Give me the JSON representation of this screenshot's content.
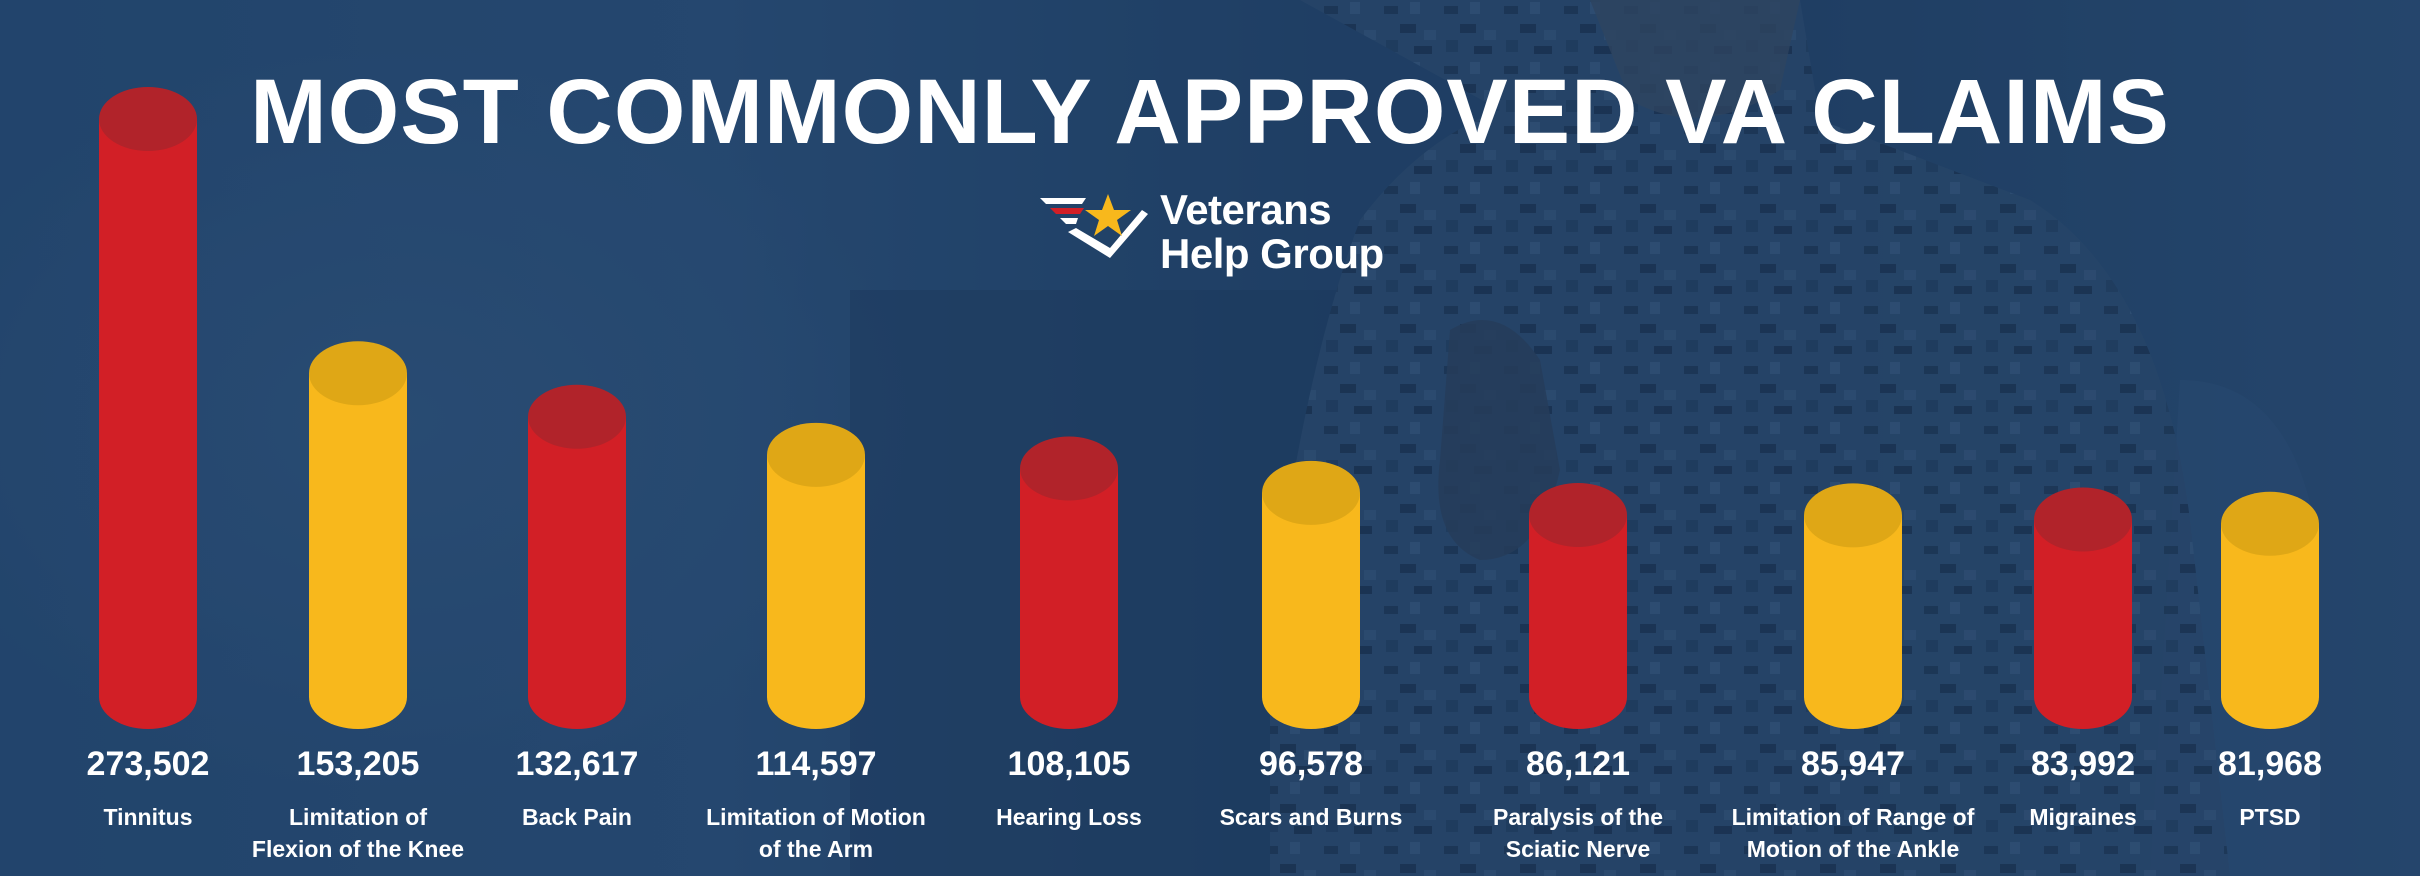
{
  "title": "MOST COMMONLY APPROVED VA CLAIMS",
  "logo": {
    "line1": "Veterans",
    "line2": "Help Group"
  },
  "colors": {
    "background": "#1f3e62",
    "red": "#d21f26",
    "red_top": "#b1232a",
    "yellow": "#f8b81c",
    "yellow_top": "#dfa716",
    "text": "#ffffff",
    "logo_red": "#d21f26",
    "logo_star": "#f8b81c"
  },
  "chart_data": {
    "type": "bar",
    "style": "3d-cylinder",
    "title": "MOST COMMONLY APPROVED VA CLAIMS",
    "categories": [
      "Tinnitus",
      "Limitation of Flexion of the Knee",
      "Back Pain",
      "Limitation of Motion of the Arm",
      "Hearing Loss",
      "Scars and Burns",
      "Paralysis of the Sciatic Nerve",
      "Limitation of Range of Motion of the Ankle",
      "Migraines",
      "PTSD"
    ],
    "category_lines": [
      [
        "Tinnitus"
      ],
      [
        "Limitation of",
        "Flexion of the Knee"
      ],
      [
        "Back Pain"
      ],
      [
        "Limitation of Motion",
        "of the Arm"
      ],
      [
        "Hearing Loss"
      ],
      [
        "Scars and Burns"
      ],
      [
        "Paralysis of the",
        "Sciatic Nerve"
      ],
      [
        "Limitation of Range of",
        "Motion of the Ankle"
      ],
      [
        "Migraines"
      ],
      [
        "PTSD"
      ]
    ],
    "values": [
      273502,
      153205,
      132617,
      114597,
      108105,
      96578,
      86121,
      85947,
      83992,
      81968
    ],
    "value_labels": [
      "273,502",
      "153,205",
      "132,617",
      "114,597",
      "108,105",
      "96,578",
      "86,121",
      "85,947",
      "83,992",
      "81,968"
    ],
    "bar_colors": [
      "red",
      "yellow",
      "red",
      "yellow",
      "red",
      "yellow",
      "red",
      "yellow",
      "red",
      "yellow"
    ],
    "xlabel": "",
    "ylabel": "",
    "grid": false,
    "legend": "none"
  }
}
